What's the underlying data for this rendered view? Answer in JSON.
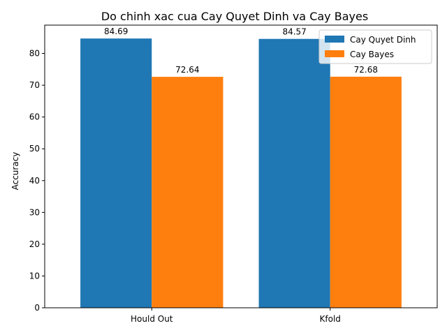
{
  "chart_data": {
    "type": "bar",
    "title": "Do chinh xac cua Cay Quyet Dinh va Cay Bayes",
    "xlabel": "",
    "ylabel": "Accuracy",
    "categories": [
      "Hould Out",
      "Kfold"
    ],
    "series": [
      {
        "name": "Cay Quyet Dinh",
        "color": "#1f77b4",
        "values": [
          84.69,
          84.57
        ],
        "labels": [
          "84.69",
          "84.57"
        ]
      },
      {
        "name": "Cay Bayes",
        "color": "#ff7f0e",
        "values": [
          72.64,
          72.68
        ],
        "labels": [
          "72.64",
          "72.68"
        ]
      }
    ],
    "ylim": [
      0,
      88.9
    ],
    "yticks": [
      0,
      10,
      20,
      30,
      40,
      50,
      60,
      70,
      80
    ],
    "ytick_labels": [
      "0",
      "10",
      "20",
      "30",
      "40",
      "50",
      "60",
      "70",
      "80"
    ],
    "grid": false,
    "legend_position": "top-right"
  }
}
